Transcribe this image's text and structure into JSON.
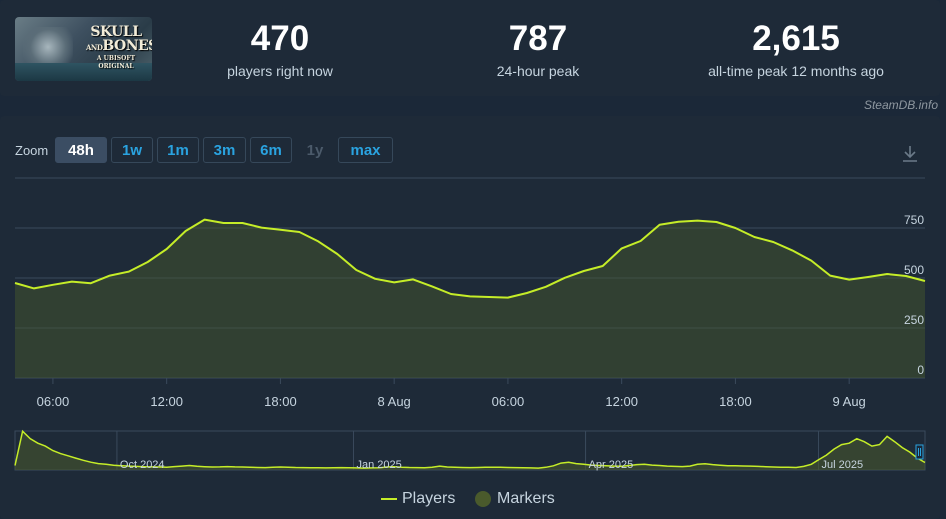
{
  "game": {
    "logo_line1": "SKULL",
    "logo_line2": "BONES",
    "logo_amp": "AND",
    "logo_sub": "A UBISOFT ORIGINAL"
  },
  "stats": [
    {
      "value": "470",
      "label": "players right now"
    },
    {
      "value": "787",
      "label": "24-hour peak"
    },
    {
      "value": "2,615",
      "label": "all-time peak 12 months ago"
    }
  ],
  "brand": "SteamDB.info",
  "zoom": {
    "label": "Zoom",
    "buttons": [
      {
        "label": "48h",
        "state": "active"
      },
      {
        "label": "1w",
        "state": "normal"
      },
      {
        "label": "1m",
        "state": "normal"
      },
      {
        "label": "3m",
        "state": "normal"
      },
      {
        "label": "6m",
        "state": "normal"
      },
      {
        "label": "1y",
        "state": "disabled"
      },
      {
        "label": "max",
        "state": "normal"
      }
    ]
  },
  "colors": {
    "line": "#c5ed28",
    "grid": "#3a4a5c",
    "fill": "#4a5a2c",
    "text": "#c6d4df"
  },
  "legend": [
    {
      "label": "Players",
      "kind": "line"
    },
    {
      "label": "Markers",
      "kind": "dot"
    }
  ],
  "chart_data": [
    {
      "type": "area",
      "series": [
        {
          "name": "Players",
          "values": [
            475,
            448,
            466,
            482,
            474,
            512,
            532,
            580,
            645,
            735,
            792,
            775,
            775,
            752,
            741,
            730,
            683,
            620,
            540,
            496,
            478,
            493,
            458,
            420,
            408,
            405,
            402,
            425,
            456,
            501,
            535,
            560,
            648,
            685,
            766,
            781,
            787,
            780,
            750,
            705,
            680,
            638,
            587,
            512,
            492,
            505,
            520,
            510,
            485
          ]
        }
      ],
      "x": [
        0,
        1,
        2,
        3,
        4,
        5,
        6,
        7,
        8,
        9,
        10,
        11,
        12,
        13,
        14,
        15,
        16,
        17,
        18,
        19,
        20,
        21,
        22,
        23,
        24,
        25,
        26,
        27,
        28,
        29,
        30,
        31,
        32,
        33,
        34,
        35,
        36,
        37,
        38,
        39,
        40,
        41,
        42,
        43,
        44,
        45,
        46,
        47,
        48
      ],
      "xticks": [
        {
          "label": "06:00",
          "at": 2
        },
        {
          "label": "12:00",
          "at": 8
        },
        {
          "label": "18:00",
          "at": 14
        },
        {
          "label": "8 Aug",
          "at": 20
        },
        {
          "label": "06:00",
          "at": 26
        },
        {
          "label": "12:00",
          "at": 32
        },
        {
          "label": "18:00",
          "at": 38
        },
        {
          "label": "9 Aug",
          "at": 44
        }
      ],
      "yticks": [
        "0",
        "250",
        "500",
        "750"
      ],
      "ylim": [
        0,
        1000
      ],
      "grid": true,
      "legend": "bottom-center"
    },
    {
      "type": "area",
      "series": [
        {
          "name": "Players",
          "values": [
            300,
            2600,
            2100,
            1800,
            1600,
            1300,
            1100,
            950,
            800,
            650,
            520,
            430,
            380,
            320,
            290,
            260,
            240,
            220,
            210,
            200,
            190,
            230,
            260,
            300,
            250,
            220,
            200,
            210,
            230,
            210,
            200,
            180,
            170,
            160,
            180,
            200,
            190,
            170,
            160,
            150,
            150,
            140,
            150,
            160,
            150,
            140,
            130,
            140,
            150,
            200,
            220,
            190,
            170,
            160,
            150,
            180,
            260,
            200,
            180,
            170,
            160,
            170,
            180,
            190,
            180,
            170,
            160,
            150,
            140,
            130,
            180,
            280,
            460,
            520,
            430,
            380,
            330,
            300,
            280,
            260,
            250,
            300,
            360,
            380,
            330,
            300,
            260,
            240,
            230,
            260,
            380,
            420,
            360,
            320,
            290,
            280,
            270,
            260,
            240,
            220,
            200,
            190,
            180,
            170,
            240,
            380,
            700,
            1000,
            1400,
            1700,
            1800,
            2100,
            1900,
            1600,
            1700,
            2250,
            1900,
            1500,
            1200,
            800,
            500
          ]
        }
      ],
      "xticks": [
        {
          "label": "Oct 2024",
          "at": 0.112
        },
        {
          "label": "Jan 2025",
          "at": 0.372
        },
        {
          "label": "Apr 2025",
          "at": 0.627
        },
        {
          "label": "Jul 2025",
          "at": 0.883
        }
      ],
      "ylim": [
        0,
        2615
      ]
    }
  ]
}
